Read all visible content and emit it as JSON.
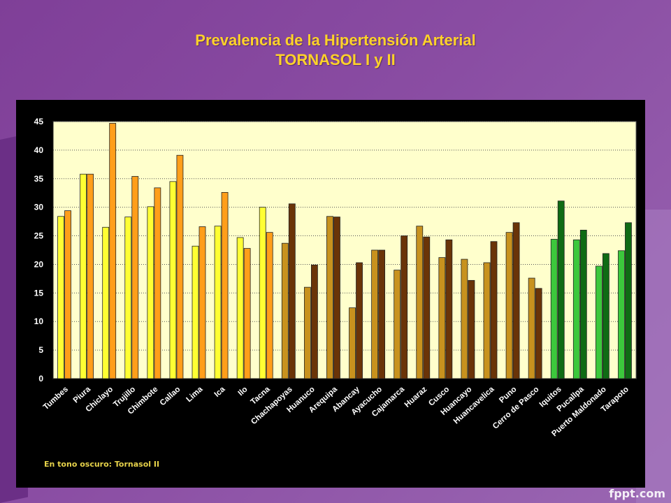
{
  "title_line1": "Prevalencia de la Hipertensión Arterial",
  "title_line2": "TORNASOL I y II",
  "footnote": "En tono oscuro: Tornasol II",
  "brand": "fppt.com",
  "colors": {
    "coast_light": "#ffff33",
    "coast_dark": "#ff9e1a",
    "highland_light": "#c8921e",
    "highland_dark": "#6a3408",
    "jungle_light": "#3cc83c",
    "jungle_dark": "#0f6b14",
    "plot_bg": "#ffffcc",
    "title": "#ffd22a"
  },
  "chart_data": {
    "type": "bar",
    "title": "",
    "xlabel": "",
    "ylabel": "",
    "ylim": [
      0,
      45
    ],
    "yticks": [
      0,
      5,
      10,
      15,
      20,
      25,
      30,
      35,
      40,
      45
    ],
    "grid": true,
    "categories": [
      "Tumbes",
      "Piura",
      "Chiclayo",
      "Trujillo",
      "Chimbote",
      "Callao",
      "Lima",
      "Ica",
      "Ilo",
      "Tacna",
      "Chachapoyas",
      "Huanuco",
      "Arequipa",
      "Abancay",
      "Ayacucho",
      "Cajamarca",
      "Huaraz",
      "Cusco",
      "Huancayo",
      "Huancavelica",
      "Puno",
      "Cerro de Pasco",
      "Iquitos",
      "Pucallpa",
      "Puerto Maldonado",
      "Tarapoto"
    ],
    "region": [
      "coast",
      "coast",
      "coast",
      "coast",
      "coast",
      "coast",
      "coast",
      "coast",
      "coast",
      "coast",
      "highland",
      "highland",
      "highland",
      "highland",
      "highland",
      "highland",
      "highland",
      "highland",
      "highland",
      "highland",
      "highland",
      "highland",
      "jungle",
      "jungle",
      "jungle",
      "jungle"
    ],
    "series": [
      {
        "values": [
          28.4,
          35.8,
          26.5,
          28.3,
          30.1,
          34.5,
          23.2,
          26.7,
          24.7,
          30.0,
          23.7,
          16.0,
          28.4,
          12.4,
          22.5,
          19.0,
          26.7,
          21.2,
          20.9,
          20.3,
          25.6,
          17.6,
          24.4,
          24.3,
          19.7,
          22.4
        ]
      },
      {
        "values": [
          29.4,
          35.8,
          44.7,
          35.4,
          33.4,
          39.1,
          26.6,
          32.6,
          22.8,
          25.6,
          30.6,
          19.9,
          28.3,
          20.3,
          22.5,
          25.0,
          24.8,
          24.3,
          17.2,
          24.0,
          27.3,
          15.8,
          31.1,
          26.0,
          21.9,
          27.3
        ]
      }
    ]
  }
}
